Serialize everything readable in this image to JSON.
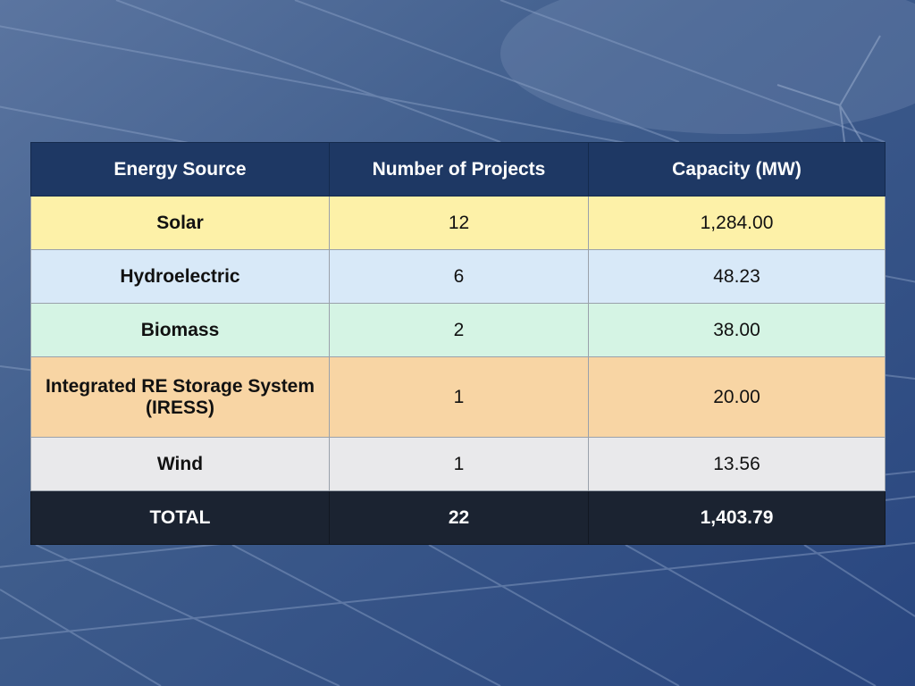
{
  "table": {
    "headers": [
      "Energy Source",
      "Number of Projects",
      "Capacity (MW)"
    ],
    "rows": [
      {
        "source": "Solar",
        "projects": "12",
        "capacity": "1,284.00",
        "color": "#fdf1a8"
      },
      {
        "source": "Hydroelectric",
        "projects": "6",
        "capacity": "48.23",
        "color": "#d8e9f8"
      },
      {
        "source": "Biomass",
        "projects": "2",
        "capacity": "38.00",
        "color": "#d5f4e4"
      },
      {
        "source": "Integrated RE Storage System (IRESS)",
        "projects": "1",
        "capacity": "20.00",
        "color": "#f8d5a4"
      },
      {
        "source": "Wind",
        "projects": "1",
        "capacity": "13.56",
        "color": "#e9e9eb"
      }
    ],
    "total": {
      "label": "TOTAL",
      "projects": "22",
      "capacity": "1,403.79",
      "color": "#1b2331"
    },
    "header_color": "#1e3864"
  },
  "background": {
    "image": "solar-panels-and-wind-turbine-photo",
    "tint": "#33528a"
  }
}
